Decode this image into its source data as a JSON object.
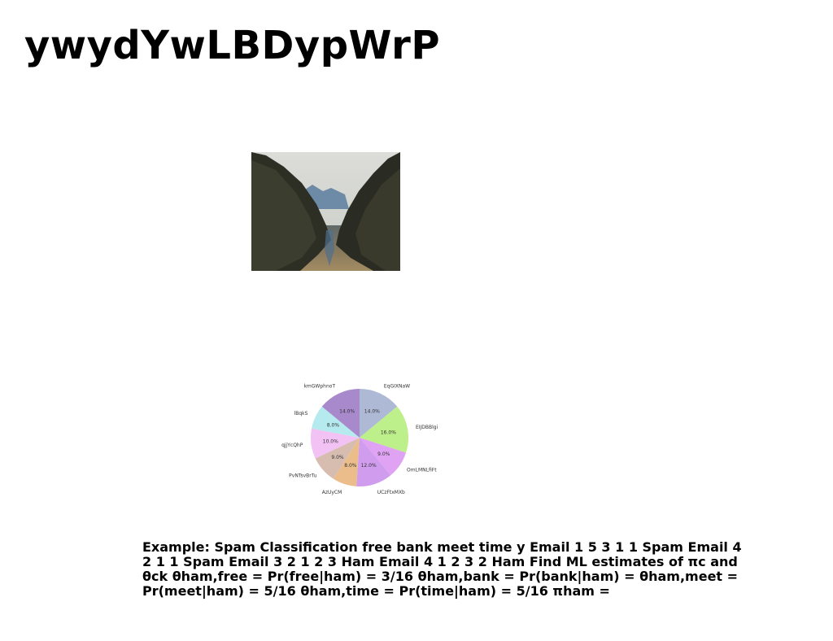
{
  "page": {
    "title": "ywydYwLBDypWrP",
    "photo_icon": "mountain-fjord-photo",
    "body_text": "Example: Spam Classification free bank meet time y Email 1 5 3 1 1 Spam Email 4 2 1 1 Spam Email 3 2 1 2 3 Ham Email 4 1 2 3 2 Ham Find ML estimates of πc and θck θham,free = Pr(free|ham) = 3/16 θham,bank = Pr(bank|ham) = θham,meet = Pr(meet|ham) = 5/16 θham,time = Pr(time|ham) = 5/16 πham ="
  },
  "chart_data": {
    "type": "pie",
    "title": "",
    "start": "top, clockwise",
    "slices": [
      {
        "label": "EqGIXNaW",
        "value": 14.0,
        "pct_label": "14.0%",
        "color": "#aeb9d6"
      },
      {
        "label": "EIJDBBlgi",
        "value": 16.0,
        "pct_label": "16.0%",
        "color": "#bdef8a"
      },
      {
        "label": "OmLMNLfiFt",
        "value": 9.0,
        "pct_label": "9.0%",
        "color": "#e0a2f2"
      },
      {
        "label": "UCzFtxMXb",
        "value": 12.0,
        "pct_label": "12.0%",
        "color": "#cf9cee"
      },
      {
        "label": "AzUyCM",
        "value": 8.0,
        "pct_label": "8.0%",
        "color": "#ebbd8b"
      },
      {
        "label": "PvNTsvBrTu",
        "value": 9.0,
        "pct_label": "9.0%",
        "color": "#d6bdb0"
      },
      {
        "label": "qjjYcQhP",
        "value": 10.0,
        "pct_label": "10.0%",
        "color": "#f2c2f5"
      },
      {
        "label": "lBqkS",
        "value": 8.0,
        "pct_label": "8.0%",
        "color": "#b5eaef"
      },
      {
        "label": "kmGWphnoT",
        "value": 14.0,
        "pct_label": "14.0%",
        "color": "#a889cc"
      }
    ]
  }
}
